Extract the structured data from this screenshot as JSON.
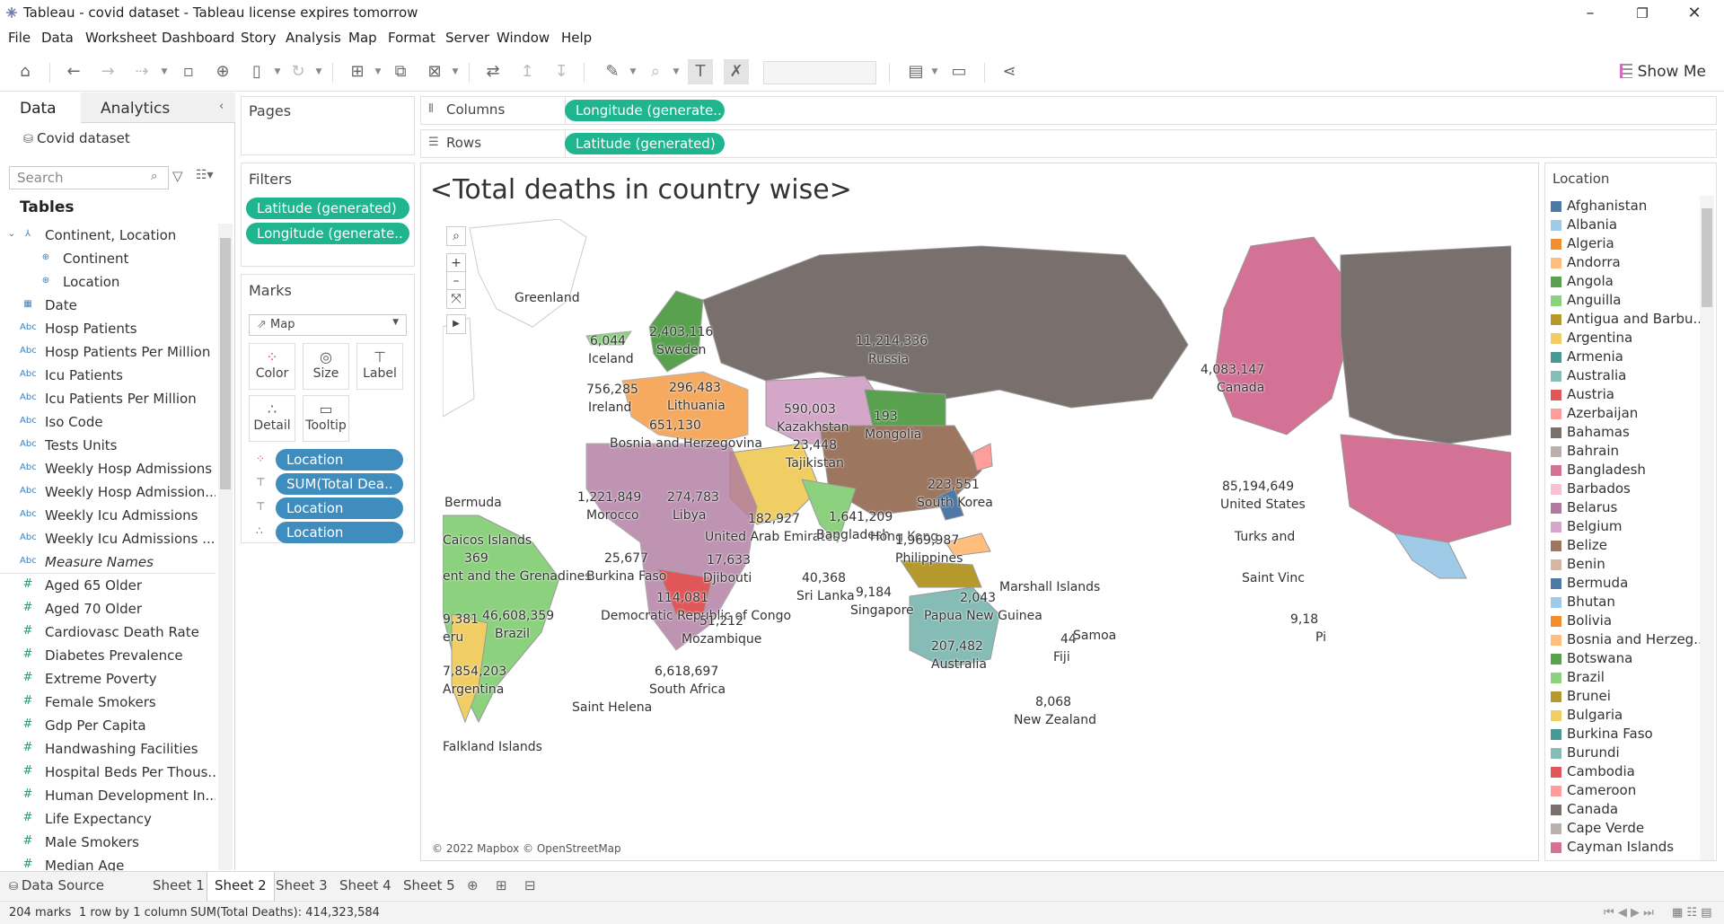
{
  "window": {
    "title": "Tableau - covid dataset - Tableau license expires tomorrow"
  },
  "menu": [
    "File",
    "Data",
    "Worksheet",
    "Dashboard",
    "Story",
    "Analysis",
    "Map",
    "Format",
    "Server",
    "Window",
    "Help"
  ],
  "toolbar": {
    "show_me": "Show Me"
  },
  "left": {
    "tab_data": "Data",
    "tab_analytics": "Analytics",
    "datasource": "Covid dataset",
    "search_placeholder": "Search",
    "tables_heading": "Tables",
    "dimensions": [
      {
        "label": "Continent, Location",
        "icon": "hierarchy-icon",
        "indent": 1
      },
      {
        "label": "Continent",
        "icon": "globe-icon",
        "indent": 2
      },
      {
        "label": "Location",
        "icon": "globe-icon",
        "indent": 2
      },
      {
        "label": "Date",
        "icon": "calendar-icon",
        "indent": 1
      },
      {
        "label": "Hosp Patients",
        "icon": "abc-icon",
        "indent": 1
      },
      {
        "label": "Hosp Patients Per Million",
        "icon": "abc-icon",
        "indent": 1
      },
      {
        "label": "Icu Patients",
        "icon": "abc-icon",
        "indent": 1
      },
      {
        "label": "Icu Patients Per Million",
        "icon": "abc-icon",
        "indent": 1
      },
      {
        "label": "Iso Code",
        "icon": "abc-icon",
        "indent": 1
      },
      {
        "label": "Tests Units",
        "icon": "abc-icon",
        "indent": 1
      },
      {
        "label": "Weekly Hosp Admissions",
        "icon": "abc-icon",
        "indent": 1
      },
      {
        "label": "Weekly Hosp Admission...",
        "icon": "abc-icon",
        "indent": 1
      },
      {
        "label": "Weekly Icu Admissions",
        "icon": "abc-icon",
        "indent": 1
      },
      {
        "label": "Weekly Icu Admissions ...",
        "icon": "abc-icon",
        "indent": 1
      },
      {
        "label": "Measure Names",
        "icon": "abc-icon",
        "indent": 1
      }
    ],
    "measures": [
      "Aged 65 Older",
      "Aged 70 Older",
      "Cardiovasc Death Rate",
      "Diabetes Prevalence",
      "Extreme Poverty",
      "Female Smokers",
      "Gdp Per Capita",
      "Handwashing Facilities",
      "Hospital Beds Per Thous...",
      "Human Development In...",
      "Life Expectancy",
      "Male Smokers",
      "Median Age"
    ]
  },
  "shelves": {
    "pages": "Pages",
    "filters": "Filters",
    "filter_pills": [
      "Latitude (generated)",
      "Longitude (generate.."
    ],
    "columns_label": "Columns",
    "rows_label": "Rows",
    "columns_pill": "Longitude (generate..",
    "rows_pill": "Latitude (generated)",
    "marks": "Marks",
    "mark_type": "Map",
    "mark_buttons": [
      "Color",
      "Size",
      "Label",
      "Detail",
      "Tooltip"
    ],
    "mark_pills": [
      "Location",
      "SUM(Total Dea..",
      "Location",
      "Location"
    ]
  },
  "view": {
    "title": "<Total deaths in country wise>",
    "attribution": "© 2022 Mapbox © OpenStreetMap",
    "labels": [
      {
        "t": "Greenland"
      },
      {
        "t": "6,044"
      },
      {
        "t": "Iceland"
      },
      {
        "t": "2,403,116"
      },
      {
        "t": "Sweden"
      },
      {
        "t": "11,214,336"
      },
      {
        "t": "Russia"
      },
      {
        "t": "4,083,147"
      },
      {
        "t": "Canada"
      },
      {
        "t": "296,483"
      },
      {
        "t": "Lithuania"
      },
      {
        "t": "756,285"
      },
      {
        "t": "Ireland"
      },
      {
        "t": "590,003"
      },
      {
        "t": "Kazakhstan"
      },
      {
        "t": "193"
      },
      {
        "t": "Mongolia"
      },
      {
        "t": "651,130"
      },
      {
        "t": "Bosnia and Herzegovina"
      },
      {
        "t": "23,448"
      },
      {
        "t": "Tajikistan"
      },
      {
        "t": "223,551"
      },
      {
        "t": "South Korea"
      },
      {
        "t": "85,194,649"
      },
      {
        "t": "United States"
      },
      {
        "t": "Bermuda"
      },
      {
        "t": "1,221,849"
      },
      {
        "t": "Morocco"
      },
      {
        "t": "274,783"
      },
      {
        "t": "Libya"
      },
      {
        "t": "182,927"
      },
      {
        "t": "United Arab Emirates"
      },
      {
        "t": "1,641,209"
      },
      {
        "t": "Bangladesh"
      },
      {
        "t": "Hong Kong"
      },
      {
        "t": "1,969,987"
      },
      {
        "t": "Philippines"
      },
      {
        "t": "Turks and"
      },
      {
        "t": "Caicos Islands"
      },
      {
        "t": "369"
      },
      {
        "t": "ent and the Grenadines"
      },
      {
        "t": "25,677"
      },
      {
        "t": "Burkina Faso"
      },
      {
        "t": "17,633"
      },
      {
        "t": "Djibouti"
      },
      {
        "t": "40,368"
      },
      {
        "t": "Sri Lanka"
      },
      {
        "t": "Marshall Islands"
      },
      {
        "t": "Saint Vinc"
      },
      {
        "t": "114,081"
      },
      {
        "t": "Democratic Republic of Congo"
      },
      {
        "t": "9,184"
      },
      {
        "t": "Singapore"
      },
      {
        "t": "2,043"
      },
      {
        "t": "Papua New Guinea"
      },
      {
        "t": "9,381"
      },
      {
        "t": "46,608,359"
      },
      {
        "t": "Brazil"
      },
      {
        "t": "eru"
      },
      {
        "t": "51,212"
      },
      {
        "t": "Mozambique"
      },
      {
        "t": "44"
      },
      {
        "t": "Samoa"
      },
      {
        "t": "Fiji"
      },
      {
        "t": "9,18"
      },
      {
        "t": "Pi"
      },
      {
        "t": "207,482"
      },
      {
        "t": "Australia"
      },
      {
        "t": "7,854,203"
      },
      {
        "t": "Argentina"
      },
      {
        "t": "6,618,697"
      },
      {
        "t": "South Africa"
      },
      {
        "t": "Saint Helena"
      },
      {
        "t": "8,068"
      },
      {
        "t": "New Zealand"
      },
      {
        "t": "Falkland Islands"
      }
    ]
  },
  "legend": {
    "title": "Location",
    "items": [
      {
        "name": "Afghanistan",
        "color": "#4e79a7"
      },
      {
        "name": "Albania",
        "color": "#a0cbe8"
      },
      {
        "name": "Algeria",
        "color": "#f28e2b"
      },
      {
        "name": "Andorra",
        "color": "#ffbe7d"
      },
      {
        "name": "Angola",
        "color": "#59a14f"
      },
      {
        "name": "Anguilla",
        "color": "#8cd17d"
      },
      {
        "name": "Antigua and Barbu..",
        "color": "#b6992d"
      },
      {
        "name": "Argentina",
        "color": "#f1ce63"
      },
      {
        "name": "Armenia",
        "color": "#499894"
      },
      {
        "name": "Australia",
        "color": "#86bcb6"
      },
      {
        "name": "Austria",
        "color": "#e15759"
      },
      {
        "name": "Azerbaijan",
        "color": "#ff9d9a"
      },
      {
        "name": "Bahamas",
        "color": "#79706e"
      },
      {
        "name": "Bahrain",
        "color": "#bab0ac"
      },
      {
        "name": "Bangladesh",
        "color": "#d37295"
      },
      {
        "name": "Barbados",
        "color": "#fabfd2"
      },
      {
        "name": "Belarus",
        "color": "#b07aa1"
      },
      {
        "name": "Belgium",
        "color": "#d4a6c8"
      },
      {
        "name": "Belize",
        "color": "#9d7660"
      },
      {
        "name": "Benin",
        "color": "#d7b5a6"
      },
      {
        "name": "Bermuda",
        "color": "#4e79a7"
      },
      {
        "name": "Bhutan",
        "color": "#a0cbe8"
      },
      {
        "name": "Bolivia",
        "color": "#f28e2b"
      },
      {
        "name": "Bosnia and Herzeg..",
        "color": "#ffbe7d"
      },
      {
        "name": "Botswana",
        "color": "#59a14f"
      },
      {
        "name": "Brazil",
        "color": "#8cd17d"
      },
      {
        "name": "Brunei",
        "color": "#b6992d"
      },
      {
        "name": "Bulgaria",
        "color": "#f1ce63"
      },
      {
        "name": "Burkina Faso",
        "color": "#499894"
      },
      {
        "name": "Burundi",
        "color": "#86bcb6"
      },
      {
        "name": "Cambodia",
        "color": "#e15759"
      },
      {
        "name": "Cameroon",
        "color": "#ff9d9a"
      },
      {
        "name": "Canada",
        "color": "#79706e"
      },
      {
        "name": "Cape Verde",
        "color": "#bab0ac"
      },
      {
        "name": "Cayman Islands",
        "color": "#d37295"
      }
    ]
  },
  "sheets": {
    "data_source": "Data Source",
    "tabs": [
      "Sheet 1",
      "Sheet 2",
      "Sheet 3",
      "Sheet 4",
      "Sheet 5"
    ],
    "active": "Sheet 2"
  },
  "status": {
    "marks": "204 marks",
    "dims": "1 row by 1 column",
    "sum": "SUM(Total Deaths): 414,323,584"
  }
}
